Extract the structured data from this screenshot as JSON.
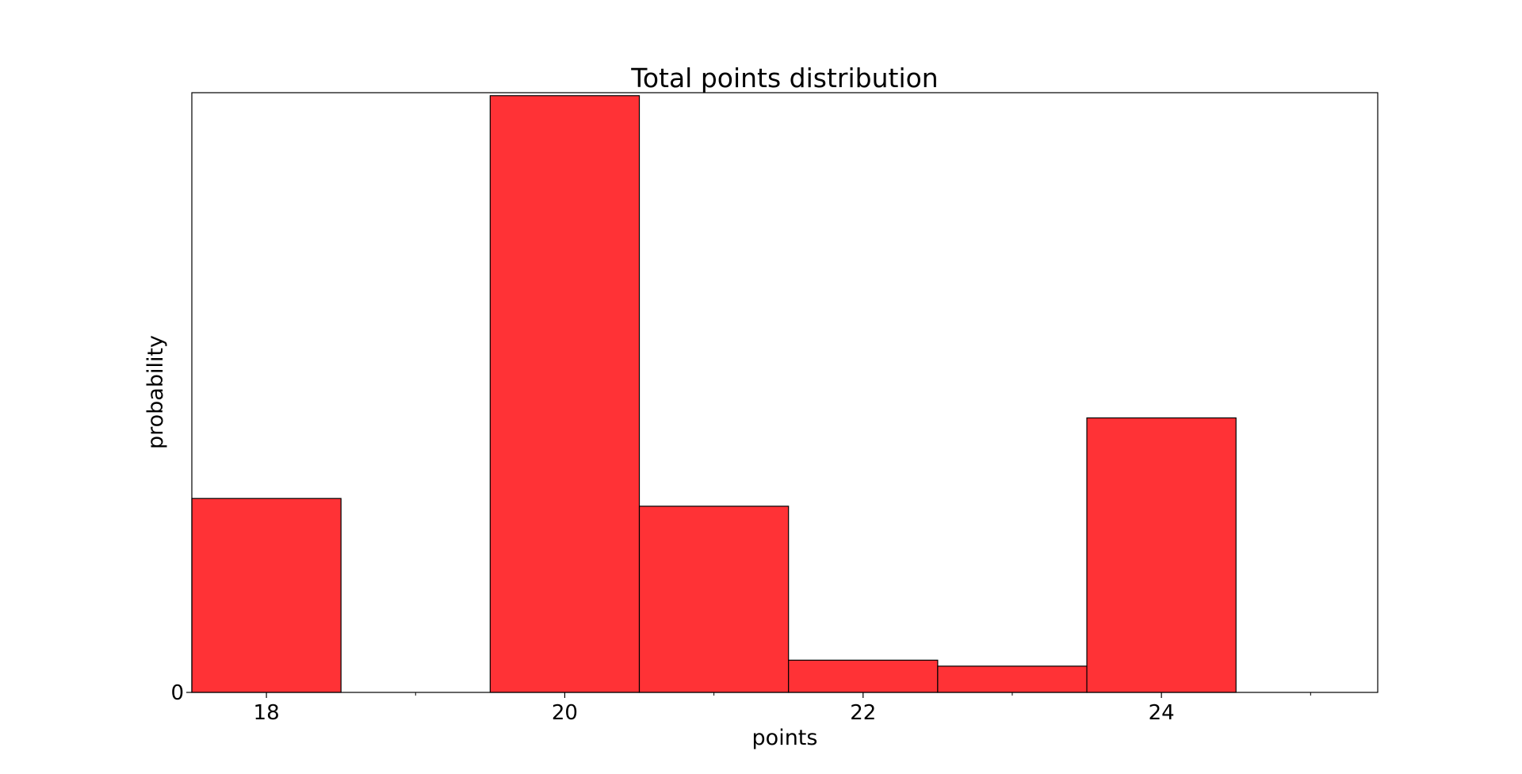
{
  "chart_data": {
    "type": "bar",
    "title": "Total points distribution",
    "xlabel": "points",
    "ylabel": "probability",
    "bins": [
      {
        "x": 18,
        "value": 0.325
      },
      {
        "x": 19,
        "value": 0
      },
      {
        "x": 20,
        "value": 1.0
      },
      {
        "x": 21,
        "value": 0.312
      },
      {
        "x": 22,
        "value": 0.054
      },
      {
        "x": 23,
        "value": 0.044
      },
      {
        "x": 24,
        "value": 0.46
      }
    ],
    "bin_width": 1,
    "xlim": [
      17.5,
      25.45
    ],
    "ylim": [
      0,
      1.005
    ],
    "x_ticks": [
      18,
      20,
      22,
      24
    ],
    "x_minor_ticks": [
      19,
      21,
      23,
      25
    ],
    "y_ticks": [
      0
    ],
    "grid": false,
    "legend": false,
    "colors": {
      "bar_fill": "#ff3236",
      "bar_edge": "#000000"
    }
  }
}
